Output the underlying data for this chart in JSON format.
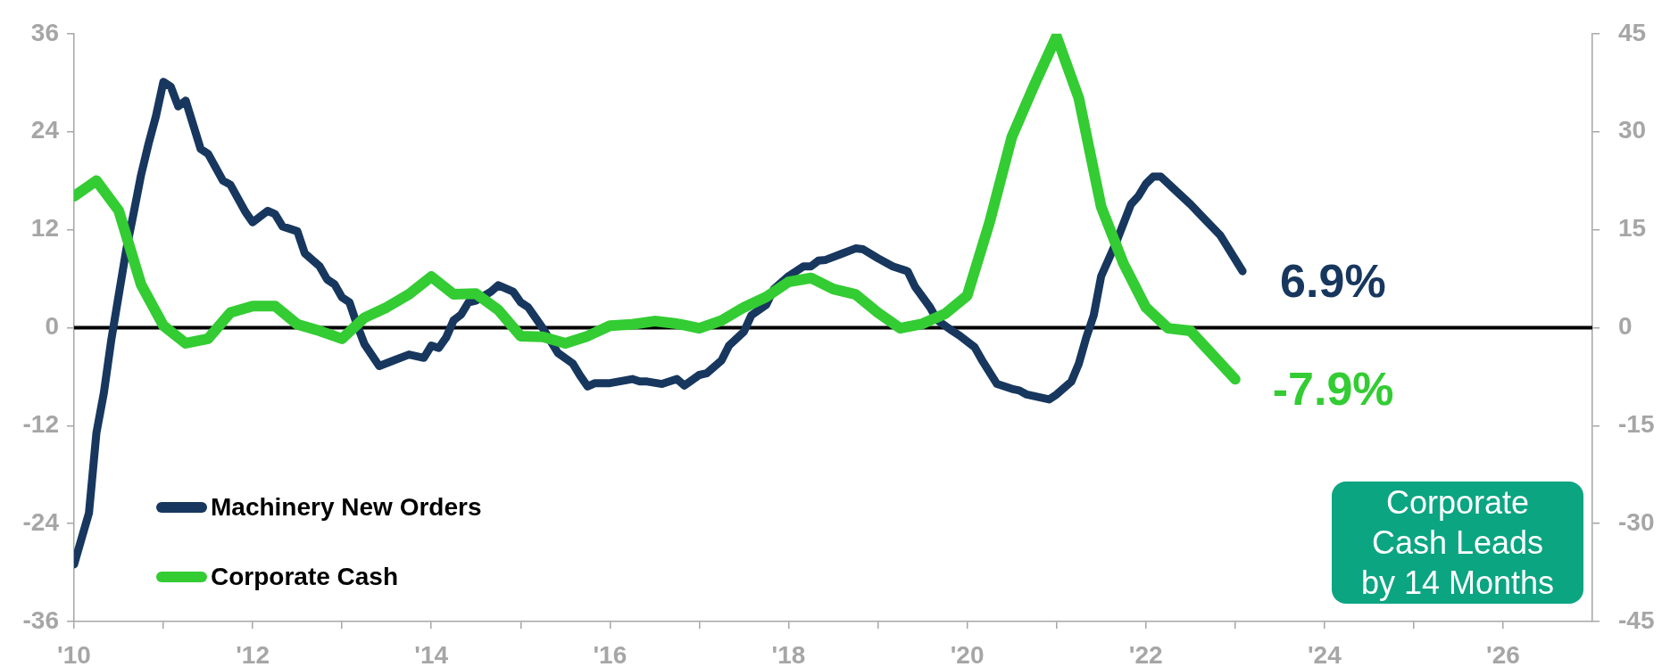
{
  "chart_data": {
    "type": "line",
    "xlim": [
      "2010",
      "2027"
    ],
    "xticks": [
      {
        "value": "2010",
        "label": "'10"
      },
      {
        "value": "2011",
        "label": null
      },
      {
        "value": "2012",
        "label": "'12"
      },
      {
        "value": "2013",
        "label": null
      },
      {
        "value": "2014",
        "label": "'14"
      },
      {
        "value": "2015",
        "label": null
      },
      {
        "value": "2016",
        "label": "'16"
      },
      {
        "value": "2017",
        "label": null
      },
      {
        "value": "2018",
        "label": "'18"
      },
      {
        "value": "2019",
        "label": null
      },
      {
        "value": "2020",
        "label": "'20"
      },
      {
        "value": "2021",
        "label": null
      },
      {
        "value": "2022",
        "label": "'22"
      },
      {
        "value": "2023",
        "label": null
      },
      {
        "value": "2024",
        "label": "'24"
      },
      {
        "value": "2025",
        "label": null
      },
      {
        "value": "2026",
        "label": "'26"
      }
    ],
    "ylim": [
      -36,
      36
    ],
    "yticks": [
      -36,
      -24,
      -12,
      0,
      12,
      24,
      36
    ],
    "y2lim": [
      -45,
      45
    ],
    "y2ticks": [
      -45,
      -30,
      -15,
      0,
      15,
      30,
      45
    ],
    "series": [
      {
        "name": "Machinery New Orders",
        "color": "#17375e",
        "x": [
          "2010-01",
          "2010-03",
          "2010-04",
          "2010-05",
          "2010-06",
          "2010-07",
          "2010-08",
          "2010-09",
          "2010-10",
          "2010-11",
          "2010-12",
          "2011-01",
          "2011-02",
          "2011-03",
          "2011-04",
          "2011-06",
          "2011-07",
          "2011-09",
          "2011-10",
          "2011-12",
          "2012-01",
          "2012-03",
          "2012-04",
          "2012-05",
          "2012-07",
          "2012-08",
          "2012-10",
          "2012-11",
          "2012-12",
          "2013-01",
          "2013-02",
          "2013-03",
          "2013-04",
          "2013-06",
          "2013-08",
          "2013-10",
          "2013-12",
          "2014-01",
          "2014-02",
          "2014-03",
          "2014-04",
          "2014-05",
          "2014-06",
          "2014-07",
          "2014-09",
          "2014-10",
          "2014-12",
          "2015-01",
          "2015-02",
          "2015-03",
          "2015-04",
          "2015-06",
          "2015-08",
          "2015-09",
          "2015-10",
          "2015-11",
          "2016-01",
          "2016-04",
          "2016-05",
          "2016-06",
          "2016-08",
          "2016-10",
          "2016-11",
          "2017-01",
          "2017-02",
          "2017-04",
          "2017-05",
          "2017-07",
          "2017-08",
          "2017-10",
          "2017-11",
          "2018-01",
          "2018-03",
          "2018-04",
          "2018-05",
          "2018-06",
          "2018-08",
          "2018-10",
          "2018-11",
          "2019-01",
          "2019-03",
          "2019-05",
          "2019-06",
          "2019-08",
          "2019-09",
          "2019-11",
          "2019-12",
          "2020-02",
          "2020-03",
          "2020-05",
          "2020-07",
          "2020-08",
          "2020-09",
          "2020-12",
          "2021-01",
          "2021-02",
          "2021-03",
          "2021-04",
          "2021-05",
          "2021-06",
          "2021-07",
          "2021-09",
          "2021-11",
          "2021-12",
          "2022-01",
          "2022-02",
          "2022-03",
          "2022-05",
          "2022-07",
          "2022-09",
          "2022-11",
          "2023-02"
        ],
        "values": [
          -29.0,
          -22.7,
          -12.9,
          -8.0,
          -1.5,
          4.0,
          9.5,
          14.0,
          18.7,
          22.5,
          25.9,
          30.1,
          29.5,
          27.1,
          27.8,
          21.9,
          21.3,
          18.0,
          17.5,
          14.2,
          12.9,
          14.3,
          13.9,
          12.4,
          11.8,
          9.1,
          7.5,
          5.9,
          5.3,
          3.7,
          3.1,
          0.4,
          -2.0,
          -4.7,
          -4.0,
          -3.3,
          -3.7,
          -2.2,
          -2.5,
          -1.2,
          0.9,
          1.6,
          3.1,
          3.3,
          4.4,
          5.2,
          4.4,
          3.1,
          2.5,
          1.2,
          -0.1,
          -3.1,
          -4.4,
          -5.9,
          -7.2,
          -6.8,
          -6.8,
          -6.3,
          -6.6,
          -6.6,
          -6.9,
          -6.3,
          -7.1,
          -5.8,
          -5.6,
          -4.0,
          -2.2,
          -0.5,
          1.5,
          2.8,
          4.7,
          6.3,
          7.5,
          7.5,
          8.2,
          8.3,
          9.0,
          9.7,
          9.6,
          8.5,
          7.5,
          6.9,
          5.0,
          2.5,
          0.9,
          -0.4,
          -1.0,
          -2.4,
          -4.0,
          -6.9,
          -7.5,
          -7.7,
          -8.2,
          -8.8,
          -8.2,
          -7.4,
          -6.6,
          -4.4,
          -1.2,
          1.5,
          6.3,
          10.4,
          15.1,
          16.1,
          17.6,
          18.5,
          18.5,
          16.8,
          15.1,
          13.2,
          11.3,
          6.9
        ],
        "value_labels": [
          null,
          null,
          null,
          null,
          null,
          null,
          null,
          null,
          null,
          null,
          null,
          null,
          null,
          null,
          null,
          null,
          null,
          null,
          null,
          null,
          null,
          null,
          null,
          null,
          null,
          null,
          null,
          null,
          null,
          null,
          null,
          null,
          null,
          null,
          null,
          null,
          null,
          null,
          null,
          null,
          null,
          null,
          null,
          null,
          null,
          null,
          null,
          null,
          null,
          null,
          null,
          null,
          null,
          null,
          null,
          null,
          null,
          null,
          null,
          null,
          null,
          null,
          null,
          null,
          null,
          null,
          null,
          null,
          null,
          null,
          null,
          null,
          null,
          null,
          null,
          null,
          null,
          null,
          null,
          null,
          null,
          null,
          null,
          null,
          null,
          null,
          null,
          null,
          null,
          null,
          null,
          null,
          null,
          null,
          null,
          null,
          null,
          null,
          null,
          null,
          null,
          null,
          null,
          null,
          null,
          null,
          null,
          null,
          null,
          null,
          null,
          "6.9%"
        ]
      },
      {
        "name": "Corporate Cash",
        "color": "#33cc33",
        "axis": "y2",
        "x": [
          "2010-01",
          "2010-04",
          "2010-07",
          "2010-10",
          "2011-01",
          "2011-04",
          "2011-07",
          "2011-10",
          "2012-01",
          "2012-04",
          "2012-07",
          "2012-10",
          "2013-01",
          "2013-04",
          "2013-07",
          "2013-10",
          "2014-01",
          "2014-04",
          "2014-07",
          "2014-10",
          "2015-01",
          "2015-04",
          "2015-07",
          "2015-10",
          "2016-01",
          "2016-04",
          "2016-07",
          "2016-10",
          "2017-01",
          "2017-04",
          "2017-07",
          "2017-10",
          "2018-01",
          "2018-04",
          "2018-07",
          "2018-10",
          "2019-01",
          "2019-04",
          "2019-07",
          "2019-10",
          "2020-01",
          "2020-04",
          "2020-07",
          "2020-10",
          "2021-01",
          "2021-04",
          "2021-07",
          "2021-10",
          "2022-01",
          "2022-04",
          "2022-07",
          "2022-10",
          "2023-01"
        ],
        "values": [
          20.1,
          22.5,
          17.9,
          6.6,
          0.3,
          -2.4,
          -1.7,
          2.3,
          3.3,
          3.3,
          0.5,
          -0.5,
          -1.7,
          1.5,
          3.1,
          5.1,
          7.8,
          5.1,
          5.2,
          2.7,
          -1.3,
          -1.4,
          -2.4,
          -1.3,
          0.3,
          0.5,
          1.0,
          0.6,
          -0.1,
          1.1,
          3.1,
          4.7,
          7.0,
          7.6,
          5.9,
          5.1,
          2.3,
          -0.1,
          0.6,
          2.1,
          4.9,
          16.1,
          29.2,
          37.1,
          44.6,
          35.1,
          18.5,
          9.8,
          3.1,
          -0.1,
          -0.5,
          -4.2,
          -7.9
        ],
        "value_labels": [
          null,
          null,
          null,
          null,
          null,
          null,
          null,
          null,
          null,
          null,
          null,
          null,
          null,
          null,
          null,
          null,
          null,
          null,
          null,
          null,
          null,
          null,
          null,
          null,
          null,
          null,
          null,
          null,
          null,
          null,
          null,
          null,
          null,
          null,
          null,
          null,
          null,
          null,
          null,
          null,
          null,
          null,
          null,
          null,
          null,
          null,
          null,
          null,
          null,
          null,
          null,
          null,
          "-7.9%"
        ]
      }
    ],
    "ref_lines": [
      {
        "axis": "y",
        "value": 0,
        "color": "#000000"
      }
    ],
    "legend": "bottom left",
    "annotations": [
      "Corporate Cash Leads by 14 Months"
    ]
  }
}
